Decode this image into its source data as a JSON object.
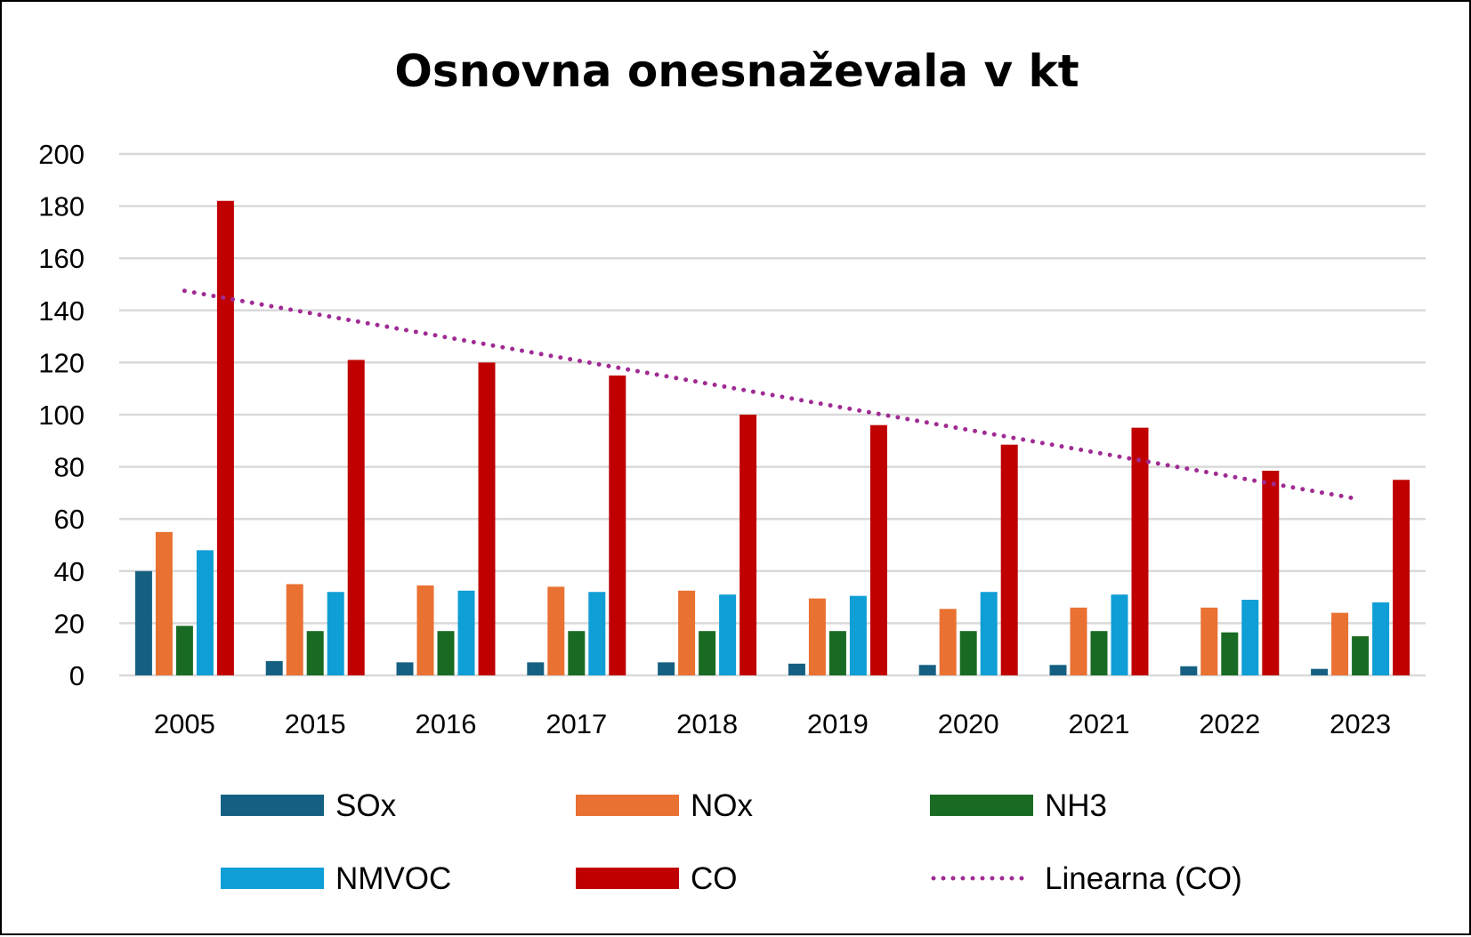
{
  "chart_data": {
    "type": "bar",
    "title": "Osnovna onesnaževala v kt",
    "xlabel": "",
    "ylabel": "",
    "ylim": [
      0,
      200
    ],
    "yticks": [
      "0",
      "20",
      "40",
      "60",
      "80",
      "100",
      "120",
      "140",
      "160",
      "180",
      "200"
    ],
    "ytick_values": [
      0,
      20,
      40,
      60,
      80,
      100,
      120,
      140,
      160,
      180,
      200
    ],
    "grid": true,
    "legend_placement": "bottom",
    "categories": [
      "2005",
      "2015",
      "2016",
      "2017",
      "2018",
      "2019",
      "2020",
      "2021",
      "2022",
      "2023"
    ],
    "series": [
      {
        "name": "SOx",
        "color": "#156082",
        "values": [
          40,
          5.5,
          5,
          5,
          5,
          4.5,
          4,
          4,
          3.5,
          2.5
        ]
      },
      {
        "name": "NOx",
        "color": "#E97132",
        "values": [
          55,
          35,
          34.5,
          34,
          32.5,
          29.5,
          25.5,
          26,
          26,
          24
        ]
      },
      {
        "name": "NH3",
        "color": "#196B24",
        "values": [
          19,
          17,
          17,
          17,
          17,
          17,
          17,
          17,
          16.5,
          15
        ]
      },
      {
        "name": "NMVOC",
        "color": "#0F9ED5",
        "values": [
          48,
          32,
          32.5,
          32,
          31,
          30.5,
          32,
          31,
          29,
          28
        ]
      },
      {
        "name": "CO",
        "color": "#C00000",
        "values": [
          182,
          121,
          120,
          115,
          100,
          96,
          88.5,
          95,
          78.5,
          75
        ]
      }
    ],
    "trendline": {
      "name": "Linearna (CO)",
      "color": "#A02B93",
      "style": "dotted",
      "start": 147.5,
      "end": 67.5
    }
  }
}
